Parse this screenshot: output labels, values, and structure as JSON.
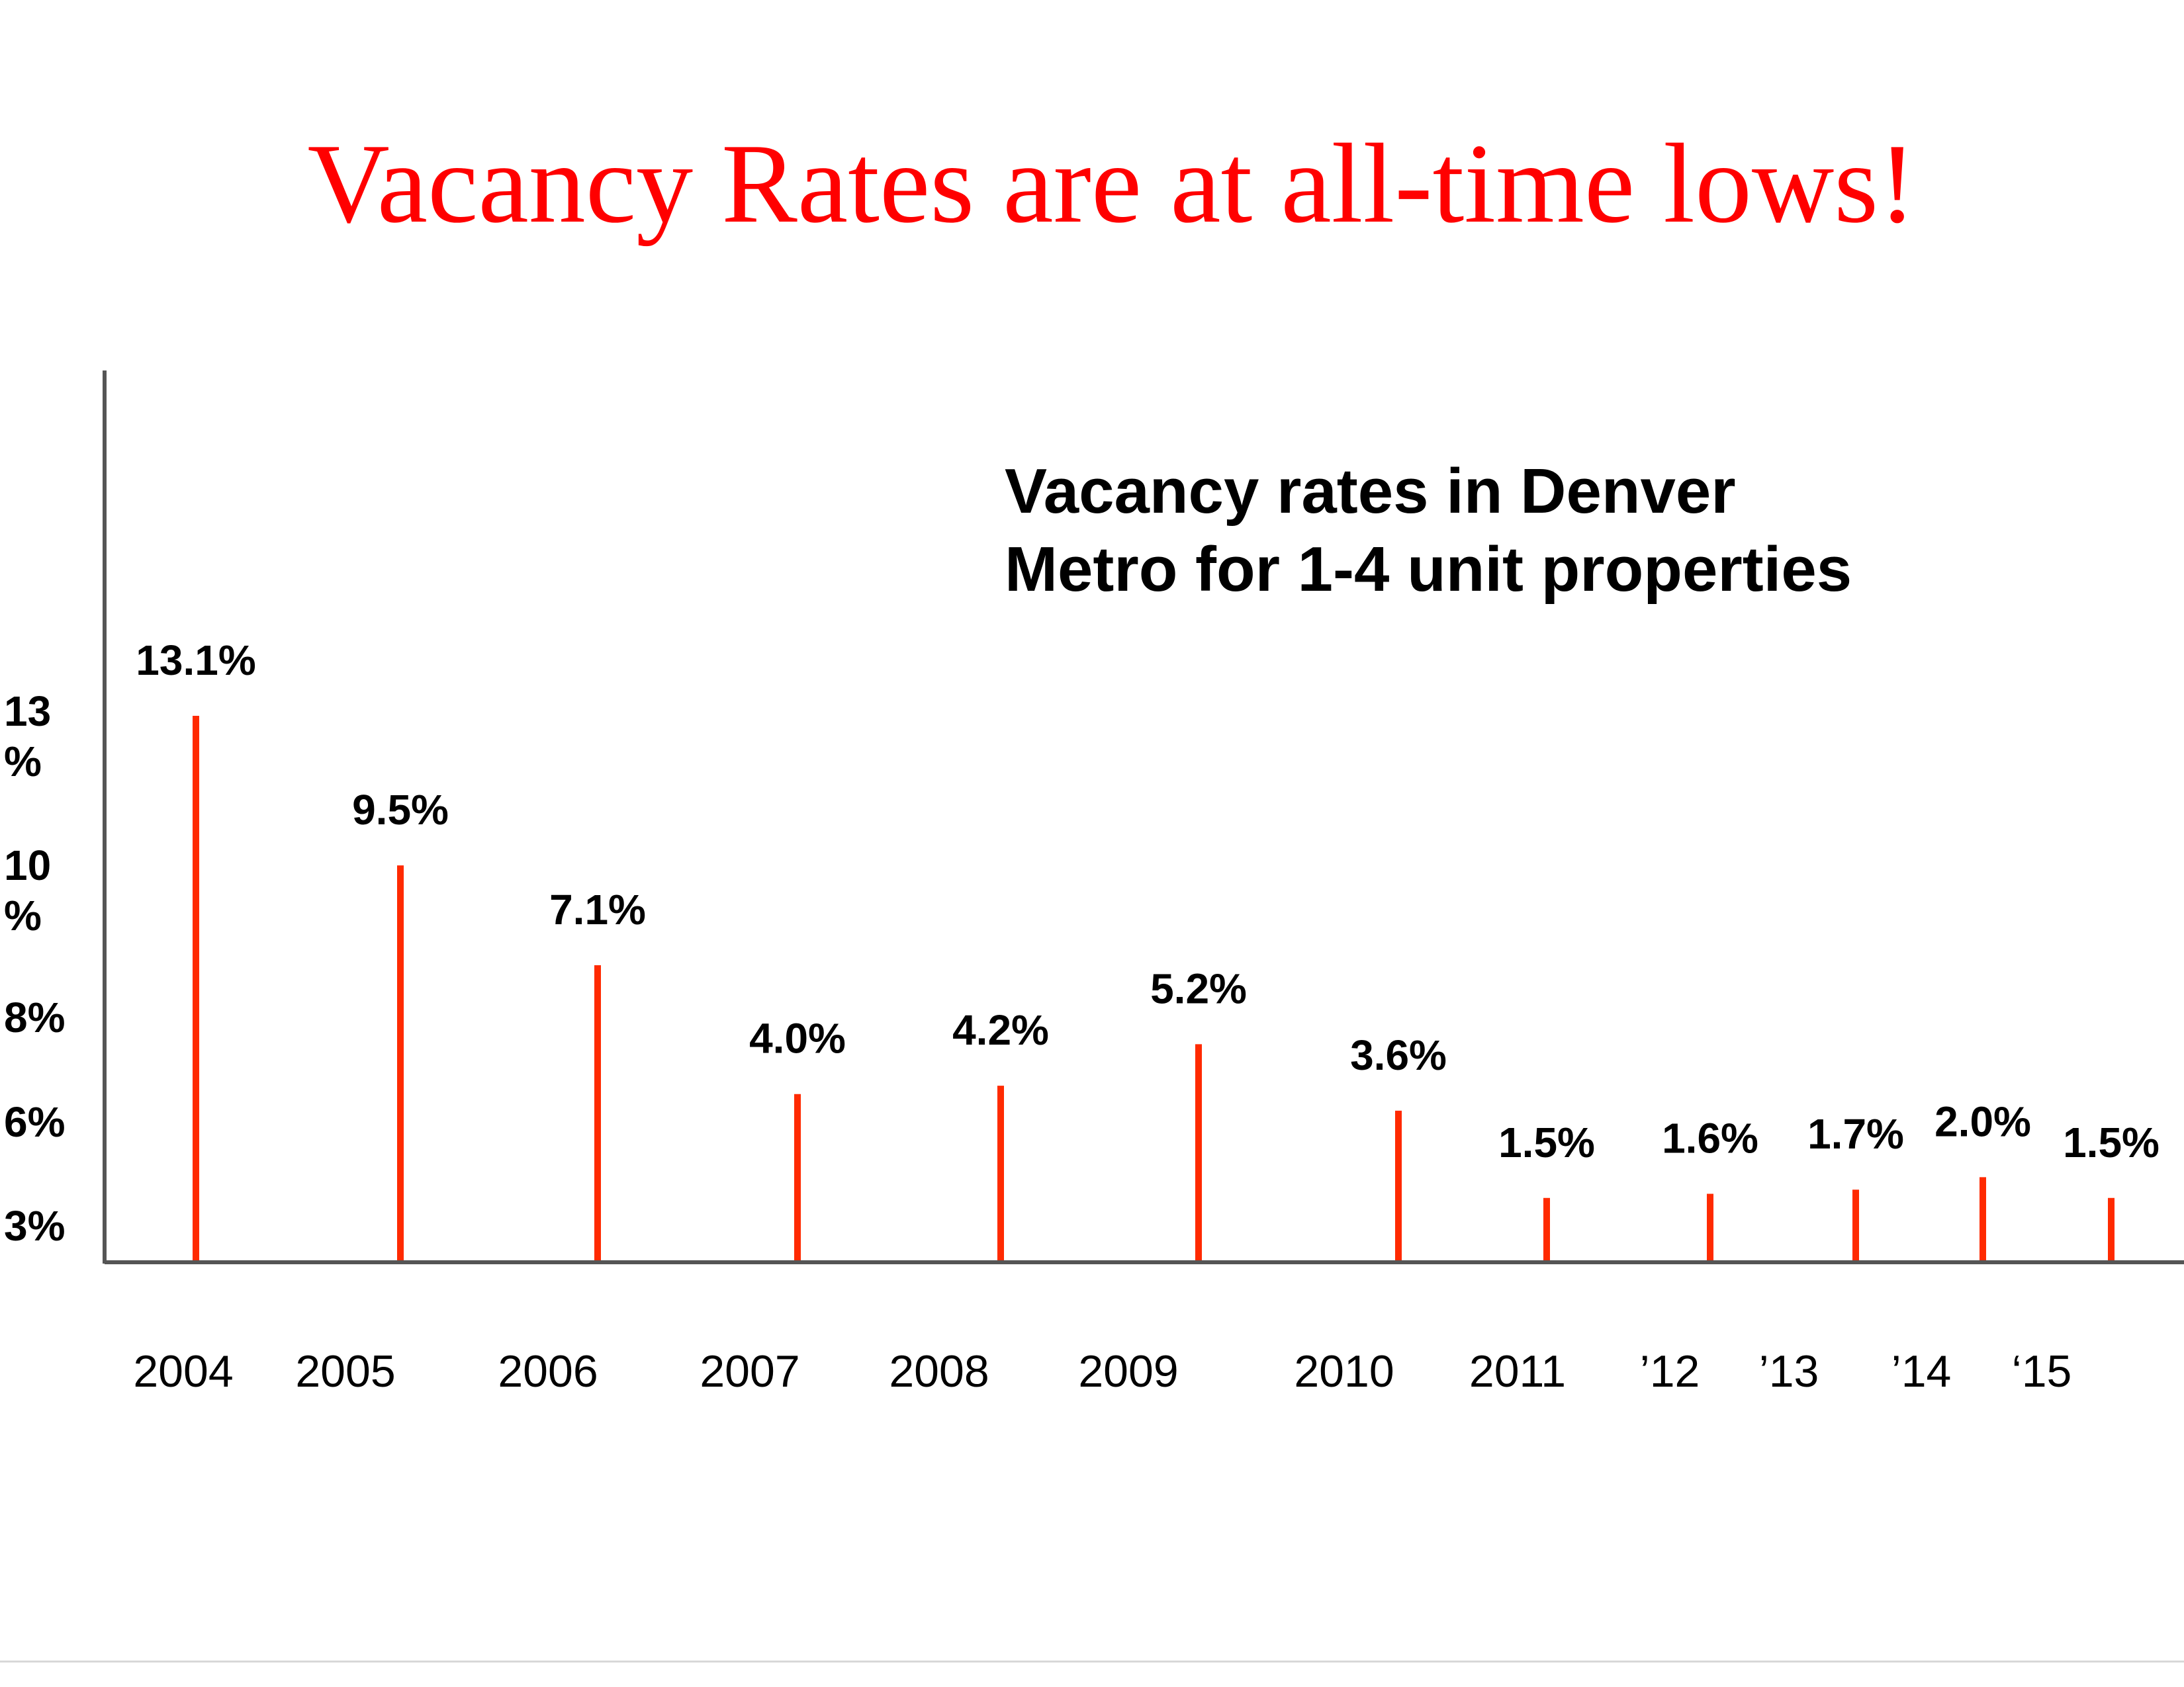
{
  "title": "Vacancy Rates are at all-time lows!",
  "colors": {
    "title": "#ff0000",
    "bar": "#ff2a00",
    "axis": "#555555",
    "text": "#000000"
  },
  "chart_data": {
    "type": "bar",
    "title": "Vacancy rates in Denver Metro for 1-4 unit properties",
    "title_lines": [
      "Vacancy rates in Denver",
      "Metro for 1-4 unit properties"
    ],
    "categories": [
      "2004",
      "2005",
      "2006",
      "2007",
      "2008",
      "2009",
      "2010",
      "2011",
      "’12",
      "’13",
      "’14",
      "‘15"
    ],
    "values": [
      13.1,
      9.5,
      7.1,
      4.0,
      4.2,
      5.2,
      3.6,
      1.5,
      1.6,
      1.7,
      2.0,
      1.5
    ],
    "data_labels": [
      "13.1%",
      "9.5%",
      "7.1%",
      "4.0%",
      "4.2%",
      "5.2%",
      "3.6%",
      "1.5%",
      "1.6%",
      "1.7%",
      "2.0%",
      "1.5%"
    ],
    "y_tick_labels": [
      [
        "13",
        "%"
      ],
      [
        "10",
        "%"
      ],
      [
        "8%"
      ],
      [
        "6%"
      ],
      [
        "3%"
      ]
    ],
    "xlabel": "",
    "ylabel": "",
    "grid": false,
    "legend": "none"
  }
}
